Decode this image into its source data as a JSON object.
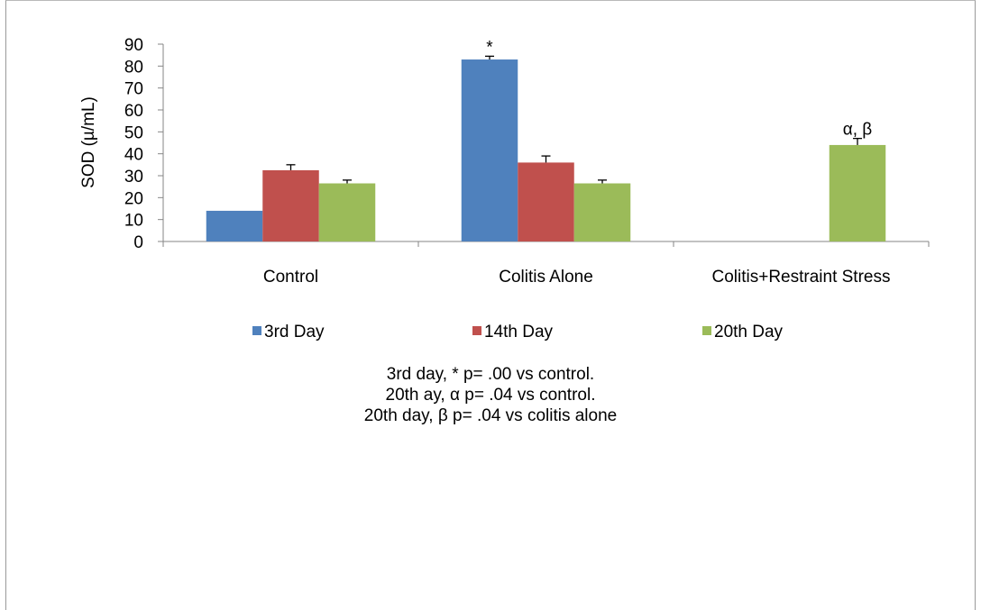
{
  "chart_data": {
    "type": "bar",
    "categories": [
      "Control",
      "Colitis Alone",
      "Colitis+Restraint Stress"
    ],
    "series": [
      {
        "name": "3rd Day",
        "color": "#4f81bd",
        "values": [
          14,
          83,
          null
        ],
        "errors": [
          0,
          1.5,
          null
        ]
      },
      {
        "name": "14th Day",
        "color": "#c0504d",
        "values": [
          32.5,
          36,
          null
        ],
        "errors": [
          2.5,
          3,
          null
        ]
      },
      {
        "name": "20th Day",
        "color": "#9bbb59",
        "values": [
          26.5,
          26.5,
          44
        ],
        "errors": [
          1.5,
          1.5,
          3
        ]
      }
    ],
    "ylabel": "SOD (µ/mL)",
    "ylim": [
      0,
      90
    ],
    "yticks": [
      0,
      10,
      20,
      30,
      40,
      50,
      60,
      70,
      80,
      90
    ],
    "annotations": [
      {
        "series": 0,
        "category": 1,
        "text": "*"
      },
      {
        "series": 2,
        "category": 2,
        "text": "α, β"
      }
    ],
    "legend_position": "bottom",
    "grid": false
  },
  "footnotes": [
    "3rd day, * p= .00 vs control.",
    "20th ay, α p= .04 vs control.",
    "20th day, β p= .04 vs colitis alone"
  ]
}
